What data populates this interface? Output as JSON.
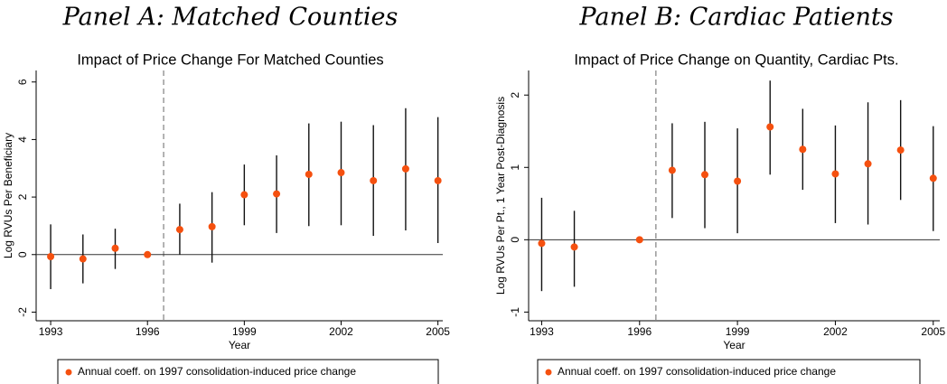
{
  "chart_data": [
    {
      "type": "errorbar-scatter",
      "panel_title": "Panel A: Matched Counties",
      "title": "Impact of Price Change For Matched Counties",
      "x_label": "Year",
      "y_label": "Log RVUs Per Beneficiary",
      "xlim": [
        1992.55,
        2005.15
      ],
      "xticks": [
        1993,
        1996,
        1999,
        2002,
        2005
      ],
      "ylim": [
        -2.3,
        6.4
      ],
      "yticks": [
        -2,
        0,
        2,
        4,
        6
      ],
      "reference_x": 1996.5,
      "reference_y": 0,
      "series": [
        {
          "name": "Annual coeff. on 1997 consolidation-induced price change",
          "color": "#f5500f",
          "x": [
            1993,
            1994,
            1995,
            1996,
            1997,
            1998,
            1999,
            2000,
            2001,
            2002,
            2003,
            2004,
            2005
          ],
          "values": [
            -0.07,
            -0.15,
            0.22,
            0,
            0.87,
            0.97,
            2.08,
            2.11,
            2.79,
            2.85,
            2.57,
            2.98,
            2.57
          ],
          "lower": [
            -1.2,
            -1.0,
            -0.5,
            null,
            0,
            -0.28,
            1.02,
            0.75,
            0.99,
            1.02,
            0.65,
            0.84,
            0.4
          ],
          "upper": [
            1.05,
            0.7,
            0.9,
            null,
            1.77,
            2.17,
            3.13,
            3.45,
            4.56,
            4.62,
            4.5,
            5.09,
            4.78
          ]
        }
      ]
    },
    {
      "type": "errorbar-scatter",
      "panel_title": "Panel B: Cardiac Patients",
      "title": "Impact of Price Change on Quantity, Cardiac Pts.",
      "x_label": "Year",
      "y_label": "Log RVUs Per Pt., 1 Year Post-Diagnosis",
      "xlim": [
        1992.6,
        2005.2
      ],
      "xticks": [
        1993,
        1996,
        1999,
        2002,
        2005
      ],
      "ylim": [
        -1.12,
        2.34
      ],
      "yticks": [
        -1,
        0,
        1,
        2
      ],
      "reference_x": 1996.5,
      "reference_y": 0,
      "series": [
        {
          "name": "Annual coeff. on 1997 consolidation-induced price change",
          "color": "#f5500f",
          "x": [
            1993,
            1994,
            1996,
            1997,
            1998,
            1999,
            2000,
            2001,
            2002,
            2003,
            2004,
            2005
          ],
          "values": [
            -0.05,
            -0.1,
            0,
            0.96,
            0.9,
            0.81,
            1.56,
            1.25,
            0.91,
            1.05,
            1.24,
            0.85
          ],
          "lower": [
            -0.71,
            -0.65,
            null,
            0.3,
            0.16,
            0.09,
            0.9,
            0.69,
            0.23,
            0.21,
            0.55,
            0.12
          ],
          "upper": [
            0.58,
            0.4,
            null,
            1.61,
            1.63,
            1.54,
            2.2,
            1.81,
            1.58,
            1.9,
            1.93,
            1.57
          ]
        }
      ]
    }
  ]
}
